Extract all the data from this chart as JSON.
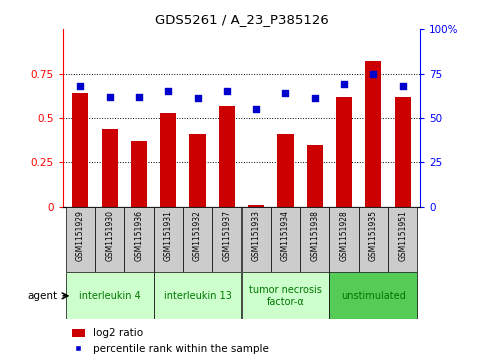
{
  "title": "GDS5261 / A_23_P385126",
  "samples": [
    "GSM1151929",
    "GSM1151930",
    "GSM1151936",
    "GSM1151931",
    "GSM1151932",
    "GSM1151937",
    "GSM1151933",
    "GSM1151934",
    "GSM1151938",
    "GSM1151928",
    "GSM1151935",
    "GSM1151951"
  ],
  "log2_ratio": [
    0.64,
    0.44,
    0.37,
    0.53,
    0.41,
    0.57,
    0.01,
    0.41,
    0.35,
    0.62,
    0.82,
    0.62
  ],
  "percentile": [
    68,
    62,
    62,
    65,
    61,
    65,
    55,
    64,
    61,
    69,
    75,
    68
  ],
  "bar_color": "#cc0000",
  "dot_color": "#0000cc",
  "groups": [
    {
      "label": "interleukin 4",
      "start": 0,
      "end": 3,
      "color": "#ccffcc"
    },
    {
      "label": "interleukin 13",
      "start": 3,
      "end": 6,
      "color": "#ccffcc"
    },
    {
      "label": "tumor necrosis\nfactor-α",
      "start": 6,
      "end": 9,
      "color": "#ccffcc"
    },
    {
      "label": "unstimulated",
      "start": 9,
      "end": 12,
      "color": "#55cc55"
    }
  ],
  "ylim_left": [
    0,
    1.0
  ],
  "ylim_right": [
    0,
    100
  ],
  "yticks_left": [
    0,
    0.25,
    0.5,
    0.75
  ],
  "yticks_right": [
    0,
    25,
    50,
    75
  ],
  "ytick_labels_left": [
    "0",
    "0.25",
    "0.5",
    "0.75"
  ],
  "ytick_labels_right": [
    "0",
    "25",
    "50",
    "75"
  ],
  "agent_label": "agent",
  "legend_bar_label": "log2 ratio",
  "legend_dot_label": "percentile rank within the sample",
  "bg_color": "#ffffff",
  "bar_width": 0.55,
  "tick_area_color": "#cccccc",
  "group_text_color": "#007700"
}
